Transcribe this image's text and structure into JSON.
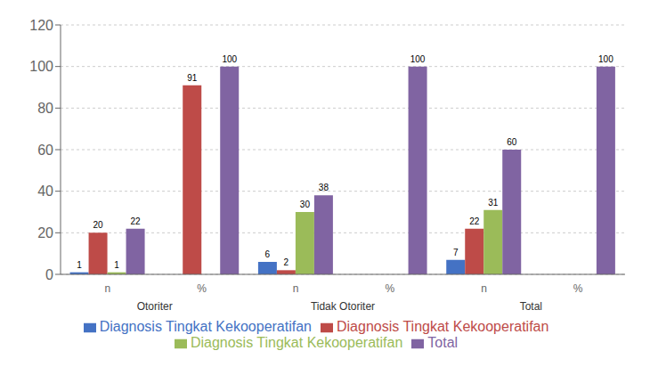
{
  "chart_data": {
    "type": "bar",
    "categories": [
      "n",
      "%",
      "n",
      "%",
      "n",
      "%"
    ],
    "group_labels": [
      "Otoriter",
      "Tidak Otoriter",
      "Total"
    ],
    "series": [
      {
        "name": "Diagnosis Tingkat Kekooperatifan",
        "color": "#4472C4",
        "values": [
          1,
          0,
          6,
          0,
          7,
          0
        ]
      },
      {
        "name": "Diagnosis Tingkat Kekooperatifan",
        "color": "#BE4B48",
        "values": [
          20,
          91,
          2,
          0,
          22,
          0
        ]
      },
      {
        "name": "Diagnosis Tingkat Kekooperatifan",
        "color": "#9BBB59",
        "values": [
          1,
          0,
          30,
          0,
          31,
          0
        ]
      },
      {
        "name": "Total",
        "color": "#8064A2",
        "values": [
          22,
          100,
          38,
          100,
          60,
          100
        ]
      }
    ],
    "ylim": [
      0,
      120
    ],
    "yticks": [
      0,
      20,
      40,
      60,
      80,
      100,
      120
    ],
    "grid": true,
    "legend": "bottom",
    "data_labels": true
  }
}
